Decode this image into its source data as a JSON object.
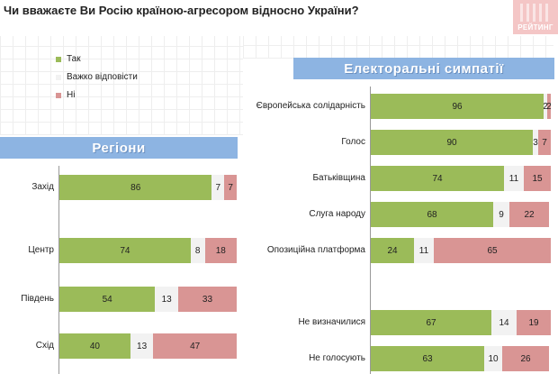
{
  "question": "Чи вважаєте Ви Росію країною-агресором відносно України?",
  "logo_text": "РЕЙТИНГ",
  "colors": {
    "yes": "#9bbb59",
    "hard": "#f2f2f2",
    "no": "#d99594",
    "banner": "#8db4e2"
  },
  "legend": [
    {
      "label": "Так",
      "color_key": "yes"
    },
    {
      "label": "Важко відповісти",
      "color_key": "hard"
    },
    {
      "label": "Ні",
      "color_key": "no"
    }
  ],
  "chart_data": [
    {
      "type": "bar",
      "stacked": true,
      "orientation": "horizontal",
      "title": "Регіони",
      "categories": [
        "Захід",
        "Центр",
        "Південь",
        "Схід"
      ],
      "series": [
        {
          "name": "Так",
          "values": [
            86,
            74,
            54,
            40
          ]
        },
        {
          "name": "Важко відповісти",
          "values": [
            7,
            8,
            13,
            13
          ]
        },
        {
          "name": "Ні",
          "values": [
            7,
            18,
            33,
            47
          ]
        }
      ],
      "xlim": [
        0,
        100
      ]
    },
    {
      "type": "bar",
      "stacked": true,
      "orientation": "horizontal",
      "title": "Електоральні симпатії",
      "categories": [
        "Європейська солідарність",
        "Голос",
        "Батьківщина",
        "Слуга народу",
        "Опозиційна платформа",
        "",
        "Не визначилися",
        "Не голосують"
      ],
      "series": [
        {
          "name": "Так",
          "values": [
            96,
            90,
            74,
            68,
            24,
            null,
            67,
            63
          ]
        },
        {
          "name": "Важко відповісти",
          "values": [
            2,
            3,
            11,
            9,
            11,
            null,
            14,
            10
          ]
        },
        {
          "name": "Ні",
          "values": [
            2,
            7,
            15,
            22,
            65,
            null,
            19,
            26
          ]
        }
      ],
      "xlim": [
        0,
        100
      ]
    }
  ]
}
